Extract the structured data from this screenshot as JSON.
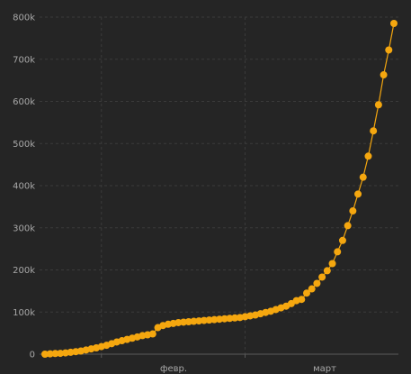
{
  "chart_data": {
    "type": "line",
    "title": "",
    "xlabel": "",
    "ylabel": "",
    "x_tick_labels": [
      {
        "index": 11,
        "label": "февр."
      },
      {
        "index": 39,
        "label": "март"
      }
    ],
    "y_tick_labels": [
      "0",
      "100k",
      "200k",
      "300k",
      "400k",
      "500k",
      "600k",
      "700k",
      "800k"
    ],
    "y_ticks": [
      0,
      100000,
      200000,
      300000,
      400000,
      500000,
      600000,
      700000,
      800000
    ],
    "ylim": [
      0,
      800000
    ],
    "grid": true,
    "series": [
      {
        "color": "#f5a70f",
        "values": [
          0,
          800,
          1500,
          2000,
          3000,
          4500,
          6000,
          7500,
          10000,
          12500,
          15000,
          18000,
          21000,
          25000,
          29000,
          32000,
          35000,
          38000,
          41000,
          44000,
          46000,
          48000,
          63000,
          68000,
          71000,
          73000,
          75000,
          76000,
          77000,
          78000,
          79000,
          80000,
          81000,
          82000,
          83000,
          84000,
          85000,
          86000,
          87000,
          89000,
          91000,
          93000,
          96000,
          99000,
          102000,
          106000,
          110000,
          114000,
          120000,
          127000,
          130000,
          145000,
          155000,
          168000,
          183000,
          198000,
          215000,
          243000,
          270000,
          305000,
          340000,
          380000,
          420000,
          470000,
          530000,
          592000,
          663000,
          722000,
          785000
        ]
      }
    ]
  }
}
